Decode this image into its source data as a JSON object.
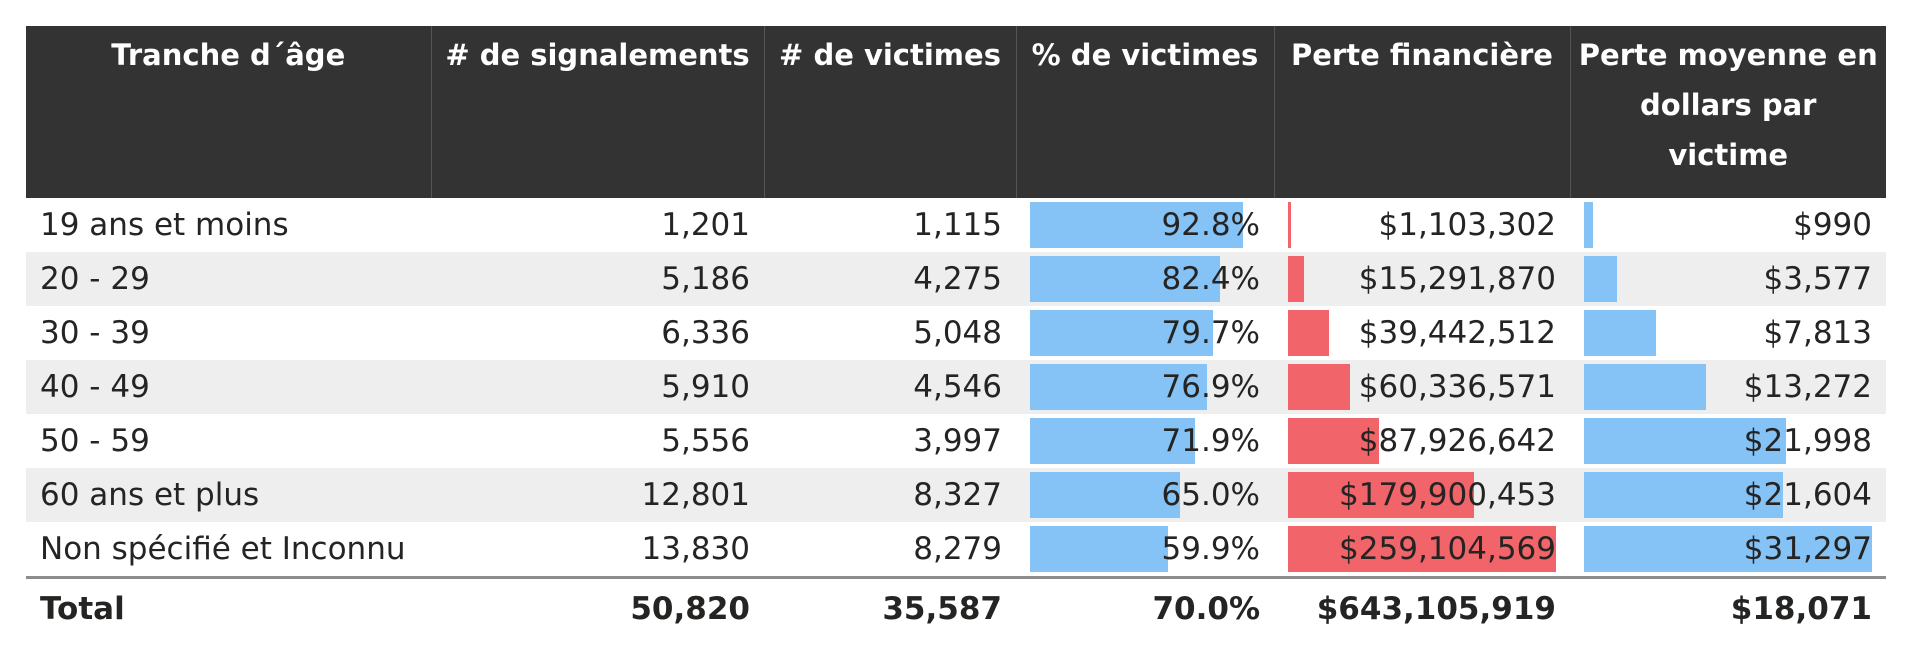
{
  "chart_data": {
    "type": "table",
    "columns": [
      "Tranche d´âge",
      "# de signalements",
      "# de victimes",
      "% de victimes",
      "Perte financière",
      "Perte moyenne en dollars par victime"
    ],
    "rows": [
      {
        "age": "19 ans et moins",
        "signalements": "1,201",
        "victimes": "1,115",
        "pct": "92.8%",
        "pct_value": 92.8,
        "perte": "$1,103,302",
        "perte_value": 1103302,
        "moyenne": "$990",
        "moyenne_value": 990
      },
      {
        "age": "20 - 29",
        "signalements": "5,186",
        "victimes": "4,275",
        "pct": "82.4%",
        "pct_value": 82.4,
        "perte": "$15,291,870",
        "perte_value": 15291870,
        "moyenne": "$3,577",
        "moyenne_value": 3577
      },
      {
        "age": "30 - 39",
        "signalements": "6,336",
        "victimes": "5,048",
        "pct": "79.7%",
        "pct_value": 79.7,
        "perte": "$39,442,512",
        "perte_value": 39442512,
        "moyenne": "$7,813",
        "moyenne_value": 7813
      },
      {
        "age": "40 - 49",
        "signalements": "5,910",
        "victimes": "4,546",
        "pct": "76.9%",
        "pct_value": 76.9,
        "perte": "$60,336,571",
        "perte_value": 60336571,
        "moyenne": "$13,272",
        "moyenne_value": 13272
      },
      {
        "age": "50 - 59",
        "signalements": "5,556",
        "victimes": "3,997",
        "pct": "71.9%",
        "pct_value": 71.9,
        "perte": "$87,926,642",
        "perte_value": 87926642,
        "moyenne": "$21,998",
        "moyenne_value": 21998
      },
      {
        "age": "60 ans et plus",
        "signalements": "12,801",
        "victimes": "8,327",
        "pct": "65.0%",
        "pct_value": 65.0,
        "perte": "$179,900,453",
        "perte_value": 179900453,
        "moyenne": "$21,604",
        "moyenne_value": 21604
      },
      {
        "age": "Non spécifié et Inconnu",
        "signalements": "13,830",
        "victimes": "8,279",
        "pct": "59.9%",
        "pct_value": 59.9,
        "perte": "$259,104,569",
        "perte_value": 259104569,
        "moyenne": "$31,297",
        "moyenne_value": 31297
      }
    ],
    "total": {
      "age": "Total",
      "signalements": "50,820",
      "victimes": "35,587",
      "pct": "70.0%",
      "perte": "$643,105,919",
      "moyenne": "$18,071"
    },
    "bar_columns": [
      "pct",
      "perte",
      "moyenne"
    ]
  },
  "colors": {
    "header_bg": "#333333",
    "header_text": "#ffffff",
    "bar_blue": "#85c2f5",
    "bar_red": "#f1646a",
    "stripe": "#eeeeee"
  }
}
